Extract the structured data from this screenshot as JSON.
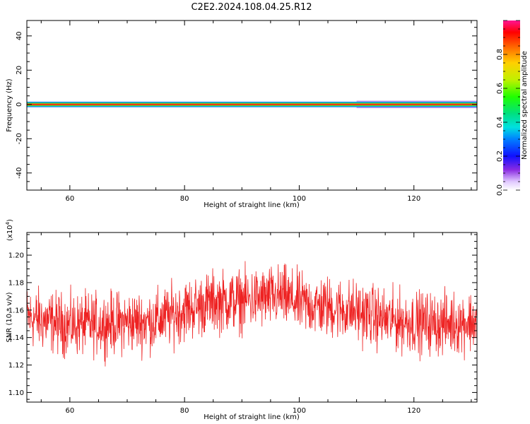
{
  "title": "C2E2.2024.108.04.25.R12",
  "chart_data": [
    {
      "type": "heatmap",
      "xlabel": "Height of straight line (km)",
      "ylabel": "Frequency (Hz)",
      "xlim": [
        52.5,
        131
      ],
      "ylim": [
        -50,
        49
      ],
      "xticks": [
        60,
        80,
        100,
        120
      ],
      "yticks": [
        -40,
        -20,
        0,
        20,
        40
      ],
      "bands": [
        {
          "freq_halfwidth": 2.2,
          "amplitude": 0.02,
          "color": "#c8a0f0",
          "x_start": 110
        },
        {
          "freq_halfwidth": 1.6,
          "amplitude": 0.1,
          "color": "#1e64ff"
        },
        {
          "freq_halfwidth": 1.3,
          "amplitude": 0.35,
          "color": "#00c8c8"
        },
        {
          "freq_halfwidth": 0.9,
          "amplitude": 0.5,
          "color": "#3cd23c"
        },
        {
          "freq_halfwidth": 0.55,
          "amplitude": 0.75,
          "color": "#f08c00"
        },
        {
          "freq_halfwidth": 0.3,
          "amplitude": 0.9,
          "color": "#ee1c1c"
        }
      ]
    },
    {
      "type": "line",
      "xlabel": "Height of straight line (km)",
      "ylabel": "SNR (10 * v/v)",
      "multiplier_label": "(x10",
      "multiplier_exp": "4",
      "multiplier_close": ")",
      "xlim": [
        52.5,
        131
      ],
      "ylim": [
        1.093,
        1.2165
      ],
      "xticks": [
        60,
        80,
        100,
        120
      ],
      "yticks": [
        1.1,
        1.12,
        1.14,
        1.16,
        1.18,
        1.2
      ],
      "color": "#ee2222",
      "trend": [
        [
          52.5,
          1.155
        ],
        [
          56,
          1.152
        ],
        [
          60,
          1.149
        ],
        [
          65,
          1.15
        ],
        [
          70,
          1.151
        ],
        [
          75,
          1.152
        ],
        [
          80,
          1.16
        ],
        [
          85,
          1.166
        ],
        [
          90,
          1.167
        ],
        [
          95,
          1.169
        ],
        [
          97,
          1.17
        ],
        [
          100,
          1.165
        ],
        [
          105,
          1.162
        ],
        [
          110,
          1.159
        ],
        [
          115,
          1.153
        ],
        [
          120,
          1.151
        ],
        [
          125,
          1.15
        ],
        [
          131,
          1.152
        ]
      ],
      "noise_amplitude": 0.011,
      "samples": 1500
    }
  ],
  "colorbar": {
    "label": "Normalized spectral amplitude",
    "range": [
      0,
      1
    ],
    "ticks": [
      0.0,
      0.2,
      0.4,
      0.6,
      0.8
    ],
    "stops": [
      [
        0.0,
        "#ffffff"
      ],
      [
        0.05,
        "#e0c8ff"
      ],
      [
        0.12,
        "#8a2be2"
      ],
      [
        0.2,
        "#1010ff"
      ],
      [
        0.3,
        "#0080ff"
      ],
      [
        0.37,
        "#00e0e0"
      ],
      [
        0.45,
        "#00e080"
      ],
      [
        0.55,
        "#20ff00"
      ],
      [
        0.65,
        "#c0f000"
      ],
      [
        0.75,
        "#ffd000"
      ],
      [
        0.85,
        "#ff6000"
      ],
      [
        0.93,
        "#ff0000"
      ],
      [
        1.0,
        "#ff1493"
      ]
    ]
  }
}
